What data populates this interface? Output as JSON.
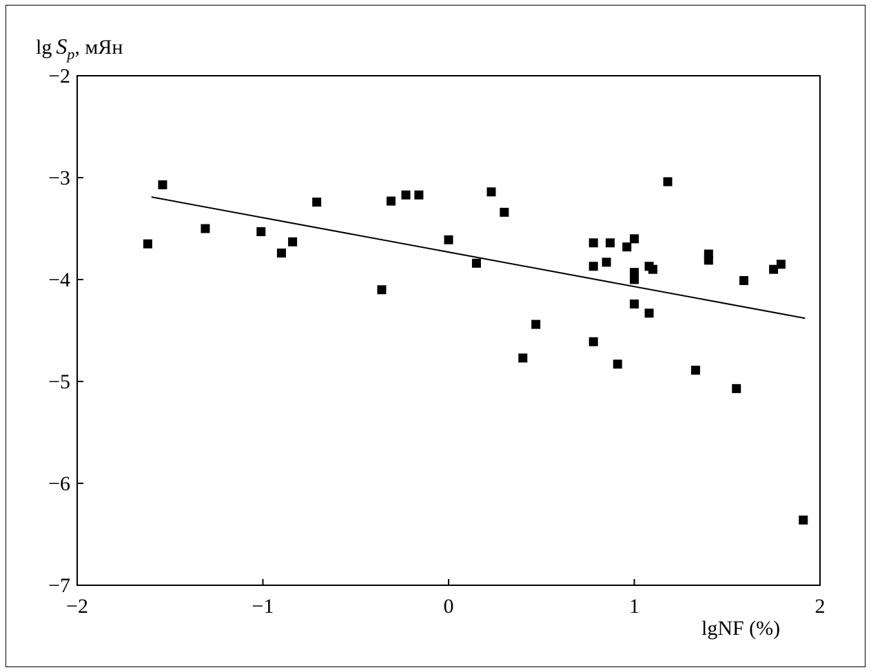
{
  "chart_data": {
    "type": "scatter",
    "ylabel_prefix": "lg",
    "ylabel_var": "S",
    "ylabel_sub": "p",
    "ylabel_unit": ", мЯн",
    "xlabel": "lgNF (%)",
    "xlim": [
      -2,
      2
    ],
    "ylim": [
      -7,
      -2
    ],
    "xticks": [
      "−2",
      "−1",
      "0",
      "1",
      "2"
    ],
    "xtick_values": [
      -2,
      -1,
      0,
      1,
      2
    ],
    "yticks": [
      "−2",
      "−3",
      "−4",
      "−5",
      "−6",
      "−7"
    ],
    "ytick_values": [
      -2,
      -3,
      -4,
      -5,
      -6,
      -7
    ],
    "grid": false,
    "marker": "square",
    "points": [
      {
        "x": -1.62,
        "y": -3.65
      },
      {
        "x": -1.54,
        "y": -3.07
      },
      {
        "x": -1.31,
        "y": -3.5
      },
      {
        "x": -1.01,
        "y": -3.53
      },
      {
        "x": -0.9,
        "y": -3.74
      },
      {
        "x": -0.84,
        "y": -3.63
      },
      {
        "x": -0.71,
        "y": -3.24
      },
      {
        "x": -0.36,
        "y": -4.1
      },
      {
        "x": -0.31,
        "y": -3.23
      },
      {
        "x": -0.23,
        "y": -3.17
      },
      {
        "x": -0.16,
        "y": -3.17
      },
      {
        "x": 0.0,
        "y": -3.61
      },
      {
        "x": 0.15,
        "y": -3.84
      },
      {
        "x": 0.23,
        "y": -3.14
      },
      {
        "x": 0.3,
        "y": -3.34
      },
      {
        "x": 0.4,
        "y": -4.77
      },
      {
        "x": 0.47,
        "y": -4.44
      },
      {
        "x": 0.78,
        "y": -3.64
      },
      {
        "x": 0.78,
        "y": -3.87
      },
      {
        "x": 0.78,
        "y": -4.61
      },
      {
        "x": 0.85,
        "y": -3.83
      },
      {
        "x": 0.87,
        "y": -3.64
      },
      {
        "x": 0.91,
        "y": -4.83
      },
      {
        "x": 0.96,
        "y": -3.68
      },
      {
        "x": 1.0,
        "y": -3.6
      },
      {
        "x": 1.0,
        "y": -3.93
      },
      {
        "x": 1.0,
        "y": -4.0
      },
      {
        "x": 1.0,
        "y": -4.24
      },
      {
        "x": 1.08,
        "y": -3.87
      },
      {
        "x": 1.08,
        "y": -4.33
      },
      {
        "x": 1.1,
        "y": -3.9
      },
      {
        "x": 1.18,
        "y": -3.04
      },
      {
        "x": 1.33,
        "y": -4.89
      },
      {
        "x": 1.4,
        "y": -3.75
      },
      {
        "x": 1.4,
        "y": -3.81
      },
      {
        "x": 1.55,
        "y": -5.07
      },
      {
        "x": 1.59,
        "y": -4.01
      },
      {
        "x": 1.75,
        "y": -3.9
      },
      {
        "x": 1.79,
        "y": -3.85
      },
      {
        "x": 1.91,
        "y": -6.36
      }
    ],
    "trendline": {
      "x1": -1.6,
      "y1": -3.19,
      "x2": 1.92,
      "y2": -4.38
    }
  }
}
